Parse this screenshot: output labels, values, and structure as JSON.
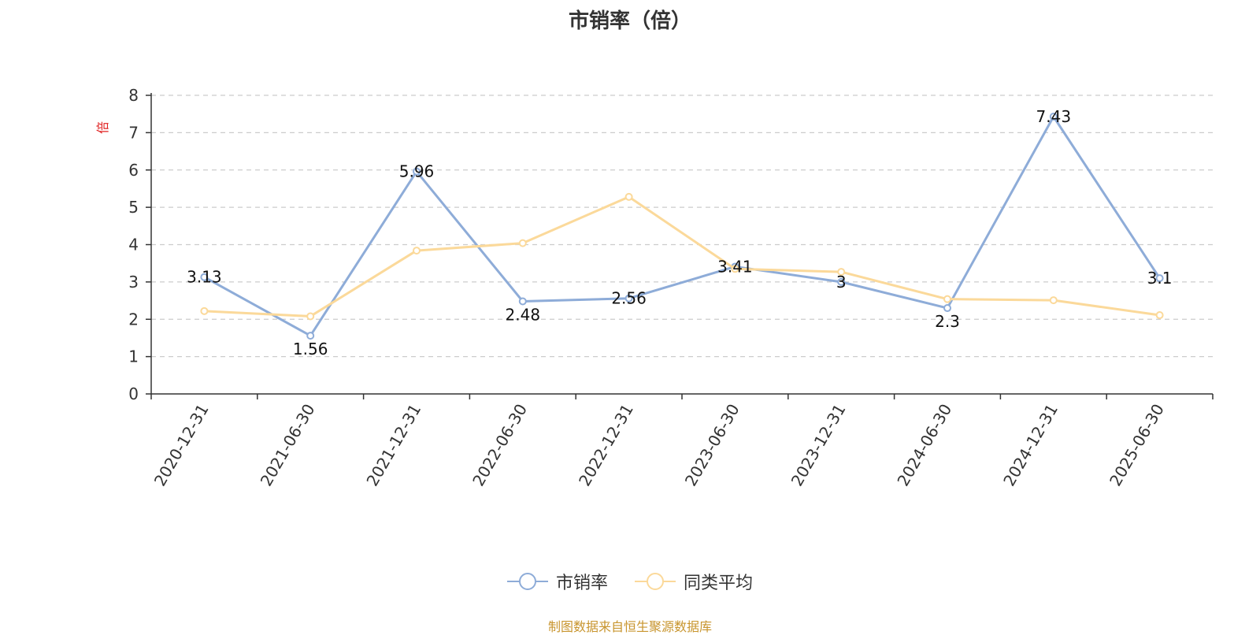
{
  "chart_data": {
    "type": "line",
    "title": "市销率（倍）",
    "ylabel": "倍",
    "xlabel": "",
    "ylim": [
      0,
      8
    ],
    "yticks": [
      0,
      1,
      2,
      3,
      4,
      5,
      6,
      7,
      8
    ],
    "grid": true,
    "legend_position": "bottom-center",
    "categories": [
      "2020-12-31",
      "2021-06-30",
      "2021-12-31",
      "2022-06-30",
      "2022-12-31",
      "2023-06-30",
      "2023-12-31",
      "2024-06-30",
      "2024-12-31",
      "2025-06-30"
    ],
    "series": [
      {
        "name": "市销率",
        "color": "#8eacd8",
        "values": [
          3.13,
          1.56,
          5.96,
          2.48,
          2.56,
          3.41,
          3,
          2.3,
          7.43,
          3.1
        ],
        "show_labels": true
      },
      {
        "name": "同类平均",
        "color": "#fbd99a",
        "values": [
          2.22,
          2.08,
          3.84,
          4.04,
          5.28,
          3.35,
          3.27,
          2.54,
          2.51,
          2.11
        ],
        "show_labels": false
      }
    ]
  },
  "source_text": "制图数据来自恒生聚源数据库",
  "colors": {
    "unit_label": "#e02020",
    "source_text": "#c8952e",
    "grid": "#cccccc",
    "axis": "#333333"
  }
}
